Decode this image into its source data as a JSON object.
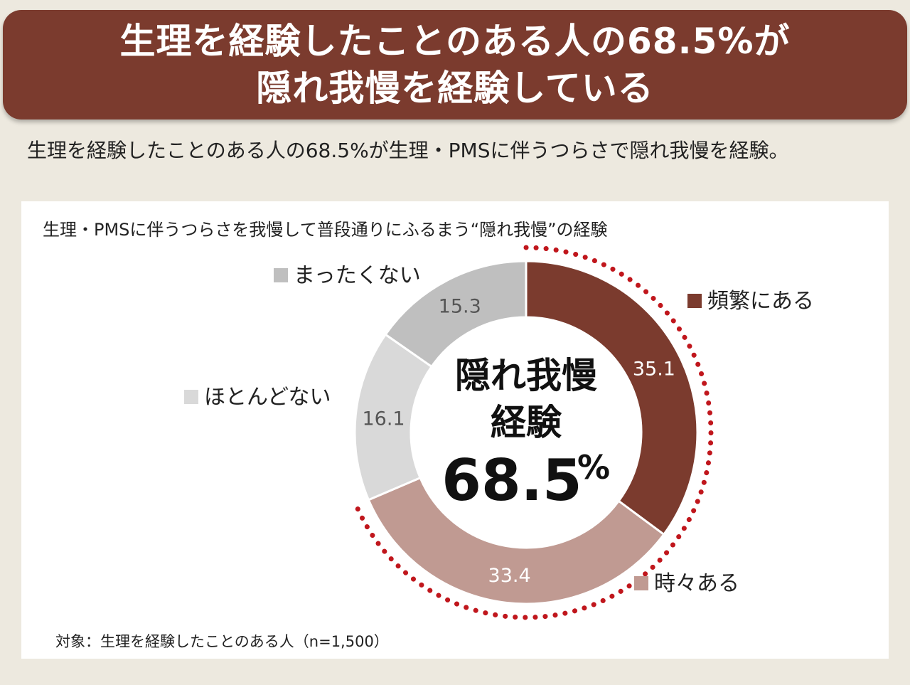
{
  "banner": {
    "line1": "生理を経験したことのある人の68.5%が",
    "line2": "隠れ我慢を経験している"
  },
  "subtitle": "生理を経験したことのある人の68.5%が生理・PMSに伴うつらさで隠れ我慢を経験。",
  "footnote": "対象：生理を経験したことのある人（n=1,500）",
  "center": {
    "line1": "隠れ我慢",
    "line2": "経験",
    "value": "68.5",
    "unit": "%"
  },
  "colors": {
    "banner": "#7b3b2e",
    "dotted_ring": "#c0161c",
    "frequent": "#7b3b2e",
    "sometimes": "#c09a92",
    "rarely": "#d9d9d9",
    "never": "#bfbfbf"
  },
  "chart_data": {
    "type": "pie",
    "donut": true,
    "title": "生理・PMSに伴うつらさを我慢して普段通りにふるまう“隠れ我慢”の経験",
    "slices": [
      {
        "label": "頻繁にある",
        "value": 35.1,
        "value_label": "35.1",
        "color": "#7b3b2e",
        "label_color": "#ffffff"
      },
      {
        "label": "時々ある",
        "value": 33.4,
        "value_label": "33.4",
        "color": "#c09a92",
        "label_color": "#ffffff"
      },
      {
        "label": "ほとんどない",
        "value": 16.1,
        "value_label": "16.1",
        "color": "#d9d9d9",
        "label_color": "#555555"
      },
      {
        "label": "まったくない",
        "value": 15.3,
        "value_label": "15.3",
        "color": "#bfbfbf",
        "label_color": "#555555"
      }
    ],
    "highlight": {
      "slices": [
        "頻繁にある",
        "時々ある"
      ],
      "total": 68.5,
      "style": "dotted-ring"
    }
  }
}
